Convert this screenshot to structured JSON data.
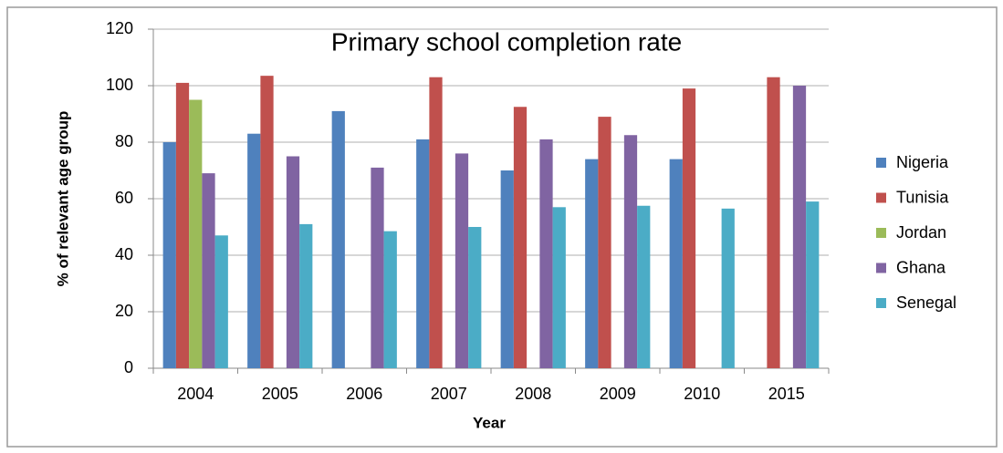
{
  "chart_data": {
    "type": "bar",
    "title": "Primary school completion rate",
    "xlabel": "Year",
    "ylabel": "% of relevant age group",
    "categories": [
      "2004",
      "2005",
      "2006",
      "2007",
      "2008",
      "2009",
      "2010",
      "2015"
    ],
    "series": [
      {
        "name": "Nigeria",
        "color": "#4f81bd",
        "values": [
          80,
          83,
          91,
          81,
          70,
          74,
          74,
          null
        ]
      },
      {
        "name": "Tunisia",
        "color": "#c0504d",
        "values": [
          101,
          103.5,
          null,
          103,
          92.5,
          89,
          99,
          103
        ]
      },
      {
        "name": "Jordan",
        "color": "#9bbb59",
        "values": [
          95,
          null,
          null,
          null,
          null,
          null,
          null,
          null
        ]
      },
      {
        "name": "Ghana",
        "color": "#8064a2",
        "values": [
          69,
          75,
          71,
          76,
          81,
          82.5,
          null,
          100
        ]
      },
      {
        "name": "Senegal",
        "color": "#4bacc6",
        "values": [
          47,
          51,
          48.5,
          50,
          57,
          57.5,
          56.5,
          59
        ]
      }
    ],
    "ylim": [
      0,
      120
    ],
    "yticks": [
      0,
      20,
      40,
      60,
      80,
      100,
      120
    ],
    "grid": true,
    "legend": "right"
  }
}
